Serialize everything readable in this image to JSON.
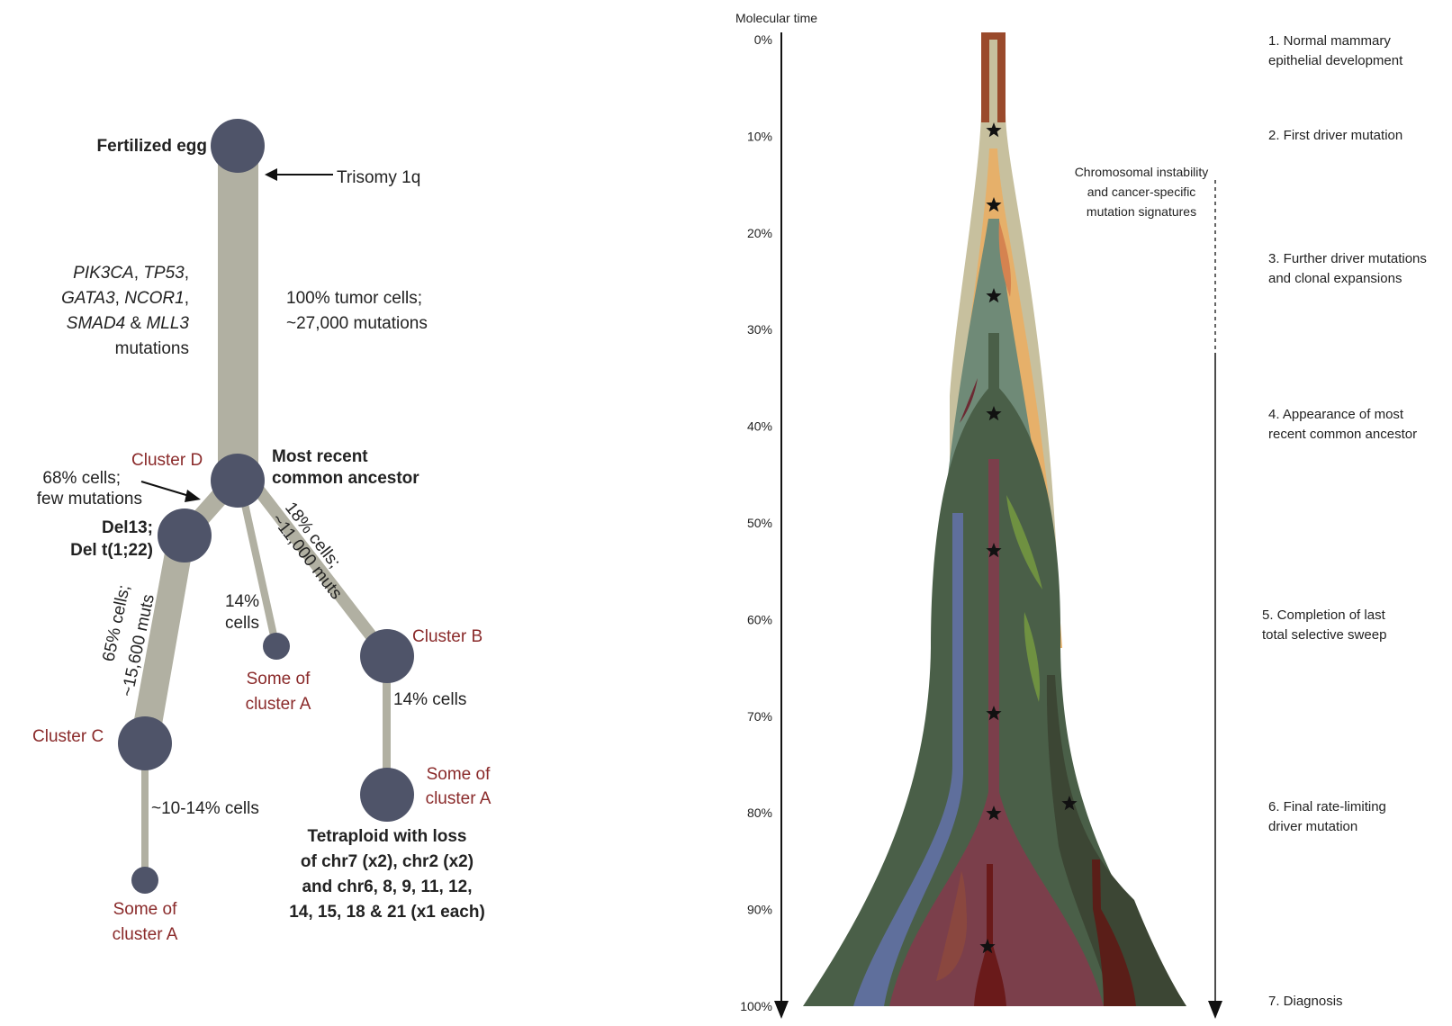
{
  "tree": {
    "nodes": {
      "egg": "Fertilized egg",
      "mrca_line1": "Most recent",
      "mrca_line2": "common ancestor",
      "cluster_d": "Cluster D",
      "cluster_b": "Cluster B",
      "cluster_c": "Cluster C",
      "some_a1_line1": "Some of",
      "some_a1_line2": "cluster A",
      "some_a2_line1": "Some of",
      "some_a2_line2": "cluster A",
      "some_a3_line1": "Some of",
      "some_a3_line2": "cluster A"
    },
    "annotations": {
      "trisomy": "Trisomy 1q",
      "genes_l1a": "PIK3CA",
      "genes_l1b": ", ",
      "genes_l1c": "TP53",
      "genes_l1d": ",",
      "genes_l2a": "GATA3",
      "genes_l2b": ", ",
      "genes_l2c": "NCOR1",
      "genes_l2d": ",",
      "genes_l3a": "SMAD4",
      "genes_l3b": " & ",
      "genes_l3c": "MLL3",
      "genes_l4": "mutations",
      "tumor_l1": "100% tumor cells;",
      "tumor_l2": "~27,000 mutations",
      "d_cells_l1": "68% cells;",
      "d_cells_l2": "few mutations",
      "del_l1": "Del13;",
      "del_l2": "Del t(1;22)",
      "c_branch_l1": "65% cells;",
      "c_branch_l2": "~15,600 muts",
      "b_branch_l1": "18% cells;",
      "b_branch_l2": "~11,000 muts",
      "mid_l1": "14%",
      "mid_l2": "cells",
      "b_child": "14% cells",
      "c_child": "~10-14% cells",
      "tetra_l1": "Tetraploid with loss",
      "tetra_l2": "of chr7 (x2), chr2 (x2)",
      "tetra_l3": "and chr6, 8, 9, 11, 12,",
      "tetra_l4": "14, 15, 18 & 21 (x1 each)"
    }
  },
  "timeline": {
    "axis_title": "Molecular time",
    "ticks": [
      "0%",
      "10%",
      "20%",
      "30%",
      "40%",
      "50%",
      "60%",
      "70%",
      "80%",
      "90%",
      "100%"
    ],
    "cin_l1": "Chromosomal instability",
    "cin_l2": "and cancer-specific",
    "cin_l3": "mutation signatures",
    "stages": [
      {
        "l1": "1. Normal mammary",
        "l2": "epithelial development"
      },
      {
        "l1": "2. First driver mutation",
        "l2": ""
      },
      {
        "l1": "3. Further driver mutations",
        "l2": "and clonal expansions"
      },
      {
        "l1": "4. Appearance of most",
        "l2": "recent common ancestor"
      },
      {
        "l1": "5. Completion of last",
        "l2": "total selective sweep"
      },
      {
        "l1": "6. Final rate-limiting",
        "l2": "driver mutation"
      },
      {
        "l1": "7. Diagnosis",
        "l2": ""
      }
    ]
  },
  "colors": {
    "node": "#4f5469",
    "branch": "#b1b0a2",
    "cluster_label": "#8a2a2a",
    "clone_outer": "#c7c09e",
    "clone_orange": "#e6b06a",
    "clone_teal": "#6f8a77",
    "clone_green": "#4a5f48",
    "clone_red": "#7b3f4b",
    "clone_blue": "#5f6f9c"
  }
}
